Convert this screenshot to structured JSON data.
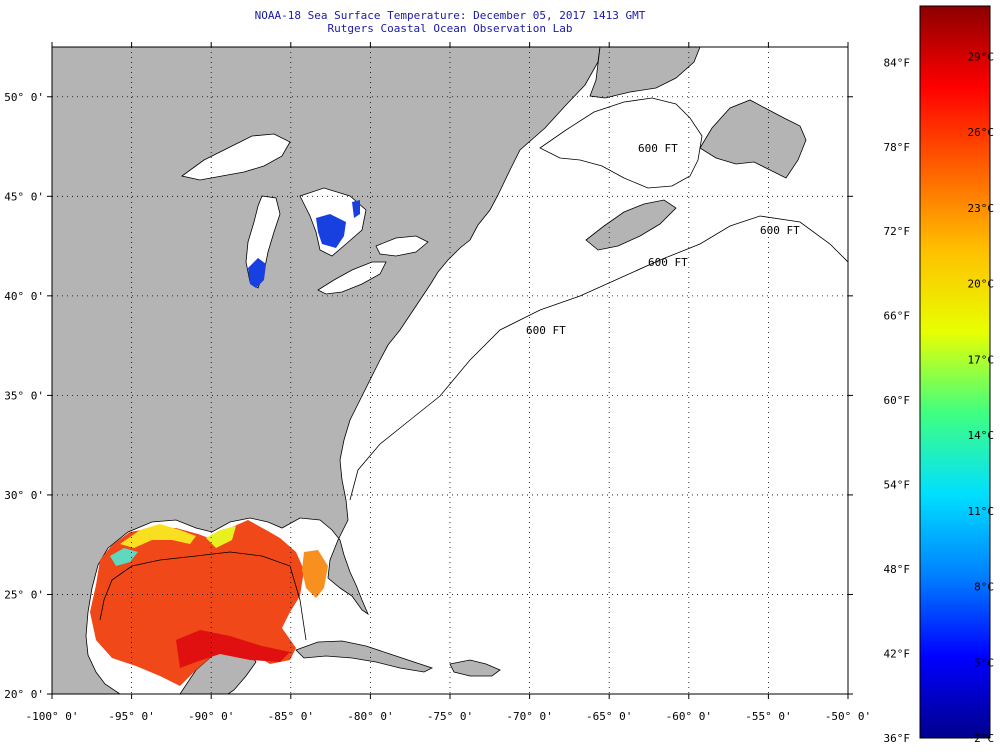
{
  "header": {
    "title": "NOAA-18 Sea Surface Temperature:  December 05, 2017 1413 GMT",
    "subtitle": "Rutgers Coastal Ocean Observation Lab"
  },
  "map": {
    "lon_range": [
      -100,
      -50
    ],
    "lat_range": [
      20,
      52.5
    ],
    "lon_ticks": [
      {
        "value": -100,
        "label": "-100° 0'"
      },
      {
        "value": -95,
        "label": "-95° 0'"
      },
      {
        "value": -90,
        "label": "-90° 0'"
      },
      {
        "value": -85,
        "label": "-85° 0'"
      },
      {
        "value": -80,
        "label": "-80° 0'"
      },
      {
        "value": -75,
        "label": "-75° 0'"
      },
      {
        "value": -70,
        "label": "-70° 0'"
      },
      {
        "value": -65,
        "label": "-65° 0'"
      },
      {
        "value": -60,
        "label": "-60° 0'"
      },
      {
        "value": -55,
        "label": "-55° 0'"
      },
      {
        "value": -50,
        "label": "-50° 0'"
      }
    ],
    "lat_ticks": [
      {
        "value": 20,
        "label": "20° 0'"
      },
      {
        "value": 25,
        "label": "25° 0'"
      },
      {
        "value": 30,
        "label": "30° 0'"
      },
      {
        "value": 35,
        "label": "35° 0'"
      },
      {
        "value": 40,
        "label": "40° 0'"
      },
      {
        "value": 45,
        "label": "45° 0'"
      },
      {
        "value": 50,
        "label": "50° 0'"
      }
    ],
    "grid": "dotted",
    "isobath_labels": [
      "600 FT",
      "600 FT",
      "600 FT",
      "600 FT"
    ],
    "colors": {
      "land": "#b4b4b4",
      "ocean_no_data": "#ffffff",
      "gulf_sst": "#f04818",
      "lake_cold": "#1840e0",
      "coast_line": "#000000"
    }
  },
  "colorbar": {
    "range_f": [
      36,
      88
    ],
    "range_c": [
      2,
      31
    ],
    "fahrenheit_labels": [
      {
        "value": 84,
        "label": "84°F"
      },
      {
        "value": 78,
        "label": "78°F"
      },
      {
        "value": 72,
        "label": "72°F"
      },
      {
        "value": 66,
        "label": "66°F"
      },
      {
        "value": 60,
        "label": "60°F"
      },
      {
        "value": 54,
        "label": "54°F"
      },
      {
        "value": 48,
        "label": "48°F"
      },
      {
        "value": 42,
        "label": "42°F"
      },
      {
        "value": 36,
        "label": "36°F"
      }
    ],
    "celsius_labels": [
      {
        "value": 29,
        "label": "29°C"
      },
      {
        "value": 26,
        "label": "26°C"
      },
      {
        "value": 23,
        "label": "23°C"
      },
      {
        "value": 20,
        "label": "20°C"
      },
      {
        "value": 17,
        "label": "17°C"
      },
      {
        "value": 14,
        "label": "14°C"
      },
      {
        "value": 11,
        "label": "11°C"
      },
      {
        "value": 8,
        "label": "8°C"
      },
      {
        "value": 5,
        "label": "5°C"
      },
      {
        "value": 2,
        "label": "2°C"
      }
    ],
    "gradient": [
      "#00008c",
      "#0000ff",
      "#0080ff",
      "#00e0ff",
      "#40ff80",
      "#e8ff00",
      "#ffc000",
      "#ff6000",
      "#ff0000",
      "#8c0000"
    ]
  }
}
